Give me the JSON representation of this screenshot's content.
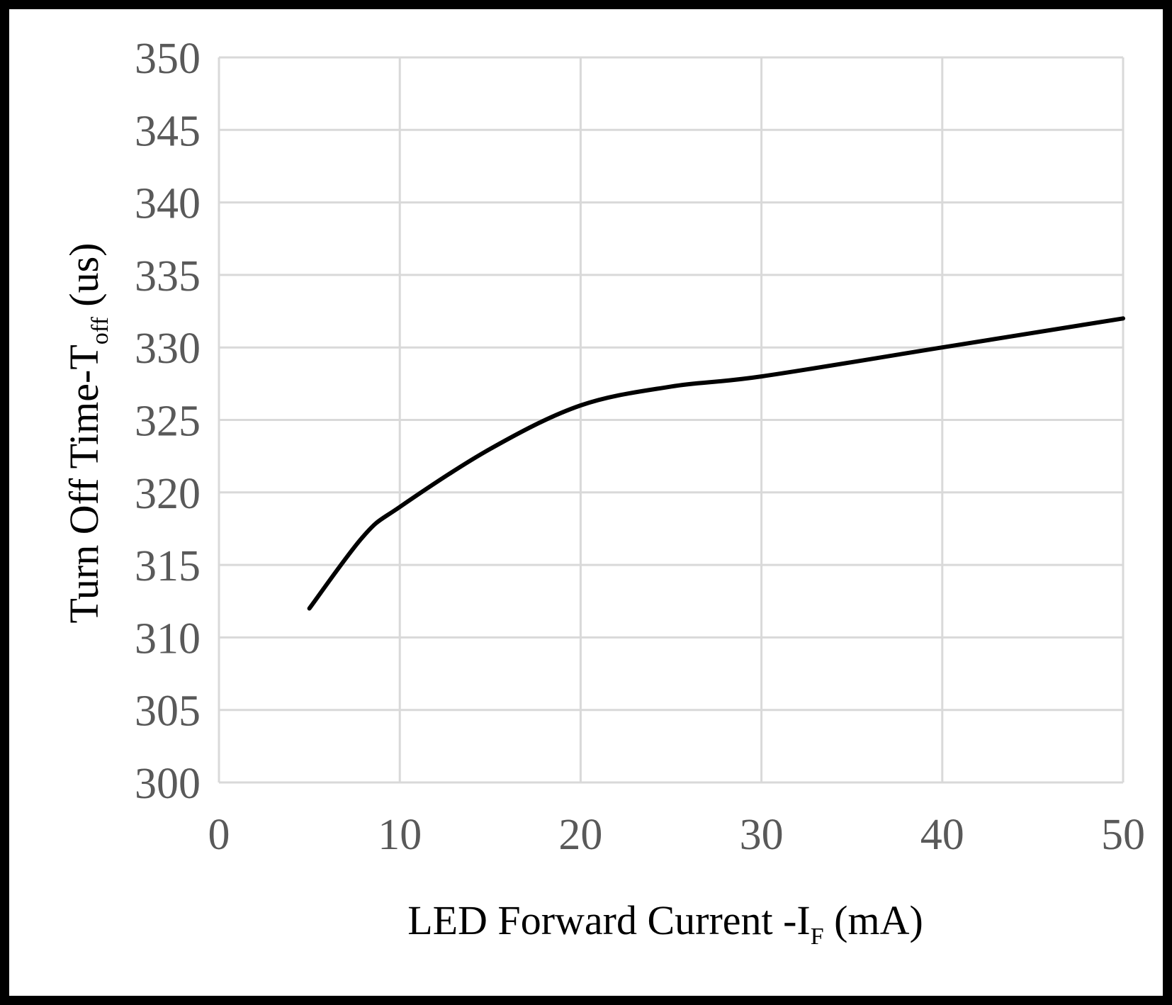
{
  "chart_data": {
    "type": "line",
    "title": "",
    "xlabel": {
      "main": "LED Forward Current -I",
      "subscript": "F",
      "unit": "(mA)"
    },
    "ylabel": {
      "main": "Turn Off Time-T",
      "subscript": "off",
      "unit": "(us)"
    },
    "xlim": [
      0,
      50
    ],
    "ylim": [
      300,
      350
    ],
    "xticks": [
      0,
      10,
      20,
      30,
      40,
      50
    ],
    "yticks": [
      300,
      305,
      310,
      315,
      320,
      325,
      330,
      335,
      340,
      345,
      350
    ],
    "grid": true,
    "legend": "none",
    "series": [
      {
        "name": "Toff",
        "x": [
          5,
          8,
          10,
          15,
          20,
          25,
          30,
          40,
          50
        ],
        "y": [
          312,
          317,
          319,
          323,
          326,
          327.3,
          328,
          330,
          332
        ],
        "color": "#000000"
      }
    ]
  },
  "colors": {
    "grid": "#d9d9d9",
    "tick_label": "#595959",
    "axis_title": "#000000",
    "line": "#000000",
    "frame": "#000000",
    "plot_bg": "#ffffff"
  }
}
